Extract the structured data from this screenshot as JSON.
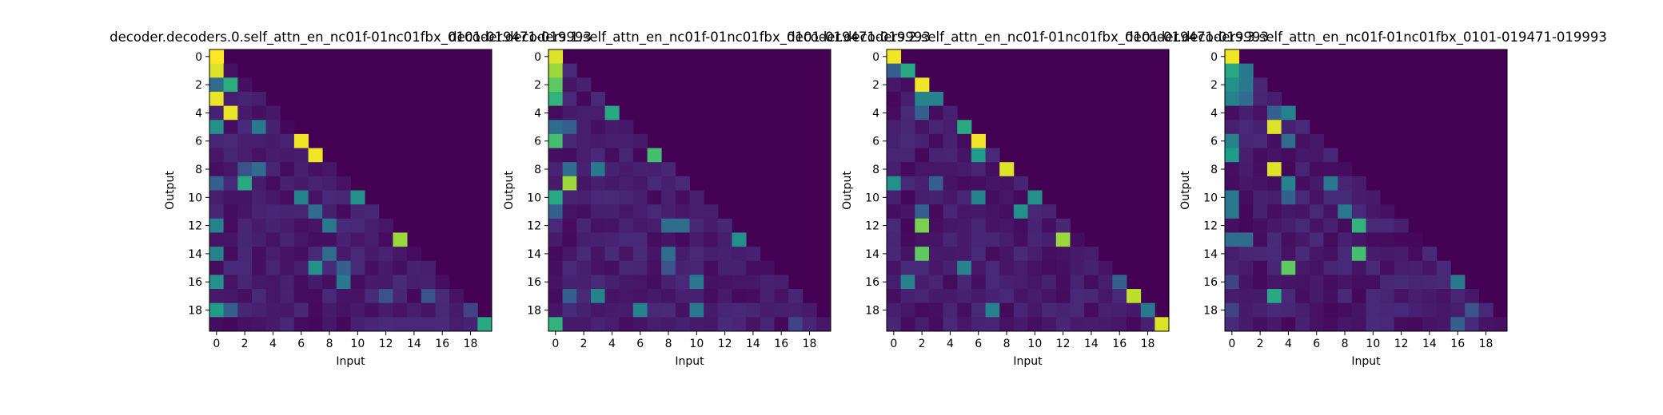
{
  "colormap": "viridis",
  "chart_data": [
    {
      "type": "heatmap",
      "title": "decoder.decoders.0.self_attn_en_nc01f-01nc01fbx_0101-019471-019993",
      "xlabel": "Input",
      "ylabel": "Output",
      "xticks": [
        "0",
        "2",
        "4",
        "6",
        "8",
        "10",
        "12",
        "14",
        "16",
        "18"
      ],
      "yticks": [
        "0",
        "2",
        "4",
        "6",
        "8",
        "10",
        "12",
        "14",
        "16",
        "18"
      ],
      "value_range": [
        0,
        1
      ],
      "peaks": [
        [
          0,
          0,
          1.0
        ],
        [
          1,
          0,
          0.95
        ],
        [
          2,
          0,
          0.35
        ],
        [
          2,
          1,
          0.62
        ],
        [
          3,
          0,
          0.97
        ],
        [
          4,
          1,
          0.97
        ],
        [
          5,
          0,
          0.5
        ],
        [
          5,
          3,
          0.4
        ],
        [
          6,
          6,
          0.98
        ],
        [
          7,
          7,
          0.98
        ],
        [
          8,
          3,
          0.35
        ],
        [
          8,
          2,
          0.25
        ],
        [
          9,
          0,
          0.3
        ],
        [
          9,
          2,
          0.6
        ],
        [
          10,
          6,
          0.45
        ],
        [
          10,
          10,
          0.5
        ],
        [
          11,
          7,
          0.35
        ],
        [
          12,
          0,
          0.45
        ],
        [
          12,
          8,
          0.4
        ],
        [
          13,
          13,
          0.85
        ],
        [
          14,
          0,
          0.45
        ],
        [
          14,
          8,
          0.35
        ],
        [
          15,
          7,
          0.5
        ],
        [
          15,
          9,
          0.3
        ],
        [
          16,
          0,
          0.5
        ],
        [
          16,
          9,
          0.4
        ],
        [
          17,
          12,
          0.25
        ],
        [
          17,
          15,
          0.25
        ],
        [
          18,
          0,
          0.55
        ],
        [
          18,
          1,
          0.3
        ],
        [
          18,
          18,
          0.2
        ],
        [
          19,
          19,
          0.6
        ]
      ]
    },
    {
      "type": "heatmap",
      "title": "decoder.decoders.1.self_attn_en_nc01f-01nc01fbx_0101-019471-019993",
      "xlabel": "Input",
      "ylabel": "Output",
      "xticks": [
        "0",
        "2",
        "4",
        "6",
        "8",
        "10",
        "12",
        "14",
        "16",
        "18"
      ],
      "yticks": [
        "0",
        "2",
        "4",
        "6",
        "8",
        "10",
        "12",
        "14",
        "16",
        "18"
      ],
      "value_range": [
        0,
        1
      ],
      "peaks": [
        [
          0,
          0,
          0.95
        ],
        [
          1,
          0,
          0.85
        ],
        [
          2,
          0,
          0.75
        ],
        [
          3,
          0,
          0.65
        ],
        [
          4,
          4,
          0.6
        ],
        [
          5,
          0,
          0.35
        ],
        [
          5,
          1,
          0.3
        ],
        [
          6,
          0,
          0.7
        ],
        [
          7,
          7,
          0.7
        ],
        [
          8,
          1,
          0.35
        ],
        [
          8,
          3,
          0.4
        ],
        [
          9,
          1,
          0.85
        ],
        [
          10,
          0,
          0.6
        ],
        [
          11,
          0,
          0.3
        ],
        [
          12,
          8,
          0.35
        ],
        [
          12,
          9,
          0.35
        ],
        [
          13,
          13,
          0.5
        ],
        [
          14,
          8,
          0.35
        ],
        [
          15,
          8,
          0.25
        ],
        [
          16,
          10,
          0.4
        ],
        [
          17,
          3,
          0.45
        ],
        [
          17,
          1,
          0.3
        ],
        [
          18,
          6,
          0.45
        ],
        [
          18,
          10,
          0.4
        ],
        [
          19,
          0,
          0.65
        ],
        [
          19,
          17,
          0.2
        ]
      ]
    },
    {
      "type": "heatmap",
      "title": "decoder.decoders.2.self_attn_en_nc01f-01nc01fbx_0101-019471-019993",
      "xlabel": "Input",
      "ylabel": "Output",
      "xticks": [
        "0",
        "2",
        "4",
        "6",
        "8",
        "10",
        "12",
        "14",
        "16",
        "18"
      ],
      "yticks": [
        "0",
        "2",
        "4",
        "6",
        "8",
        "10",
        "12",
        "14",
        "16",
        "18"
      ],
      "value_range": [
        0,
        1
      ],
      "peaks": [
        [
          0,
          0,
          0.98
        ],
        [
          1,
          0,
          0.3
        ],
        [
          1,
          1,
          0.6
        ],
        [
          2,
          2,
          0.98
        ],
        [
          3,
          2,
          0.45
        ],
        [
          3,
          3,
          0.45
        ],
        [
          4,
          2,
          0.3
        ],
        [
          5,
          5,
          0.6
        ],
        [
          6,
          6,
          0.98
        ],
        [
          7,
          6,
          0.55
        ],
        [
          8,
          8,
          0.95
        ],
        [
          9,
          0,
          0.5
        ],
        [
          9,
          3,
          0.3
        ],
        [
          10,
          6,
          0.45
        ],
        [
          10,
          10,
          0.5
        ],
        [
          11,
          9,
          0.5
        ],
        [
          11,
          2,
          0.3
        ],
        [
          12,
          2,
          0.8
        ],
        [
          13,
          12,
          0.85
        ],
        [
          14,
          2,
          0.75
        ],
        [
          15,
          5,
          0.45
        ],
        [
          16,
          1,
          0.45
        ],
        [
          16,
          16,
          0.3
        ],
        [
          17,
          17,
          0.9
        ],
        [
          18,
          7,
          0.45
        ],
        [
          18,
          18,
          0.4
        ],
        [
          19,
          19,
          0.95
        ]
      ]
    },
    {
      "type": "heatmap",
      "title": "decoder.decoders.3.self_attn_en_nc01f-01nc01fbx_0101-019471-019993",
      "xlabel": "Input",
      "ylabel": "Output",
      "xticks": [
        "0",
        "2",
        "4",
        "6",
        "8",
        "10",
        "12",
        "14",
        "16",
        "18"
      ],
      "yticks": [
        "0",
        "2",
        "4",
        "6",
        "8",
        "10",
        "12",
        "14",
        "16",
        "18"
      ],
      "value_range": [
        0,
        1
      ],
      "peaks": [
        [
          0,
          0,
          0.98
        ],
        [
          1,
          0,
          0.6
        ],
        [
          1,
          1,
          0.4
        ],
        [
          2,
          0,
          0.5
        ],
        [
          2,
          1,
          0.4
        ],
        [
          3,
          0,
          0.45
        ],
        [
          3,
          1,
          0.35
        ],
        [
          4,
          4,
          0.45
        ],
        [
          4,
          3,
          0.3
        ],
        [
          5,
          3,
          0.95
        ],
        [
          6,
          0,
          0.45
        ],
        [
          6,
          4,
          0.35
        ],
        [
          7,
          0,
          0.55
        ],
        [
          8,
          3,
          0.95
        ],
        [
          9,
          4,
          0.45
        ],
        [
          9,
          7,
          0.4
        ],
        [
          10,
          0,
          0.4
        ],
        [
          10,
          4,
          0.3
        ],
        [
          11,
          0,
          0.4
        ],
        [
          11,
          8,
          0.4
        ],
        [
          12,
          9,
          0.65
        ],
        [
          13,
          0,
          0.35
        ],
        [
          13,
          1,
          0.35
        ],
        [
          14,
          9,
          0.7
        ],
        [
          15,
          4,
          0.75
        ],
        [
          16,
          16,
          0.4
        ],
        [
          16,
          0,
          0.2
        ],
        [
          17,
          3,
          0.6
        ],
        [
          18,
          17,
          0.25
        ],
        [
          18,
          0,
          0.2
        ],
        [
          19,
          16,
          0.3
        ]
      ]
    }
  ]
}
